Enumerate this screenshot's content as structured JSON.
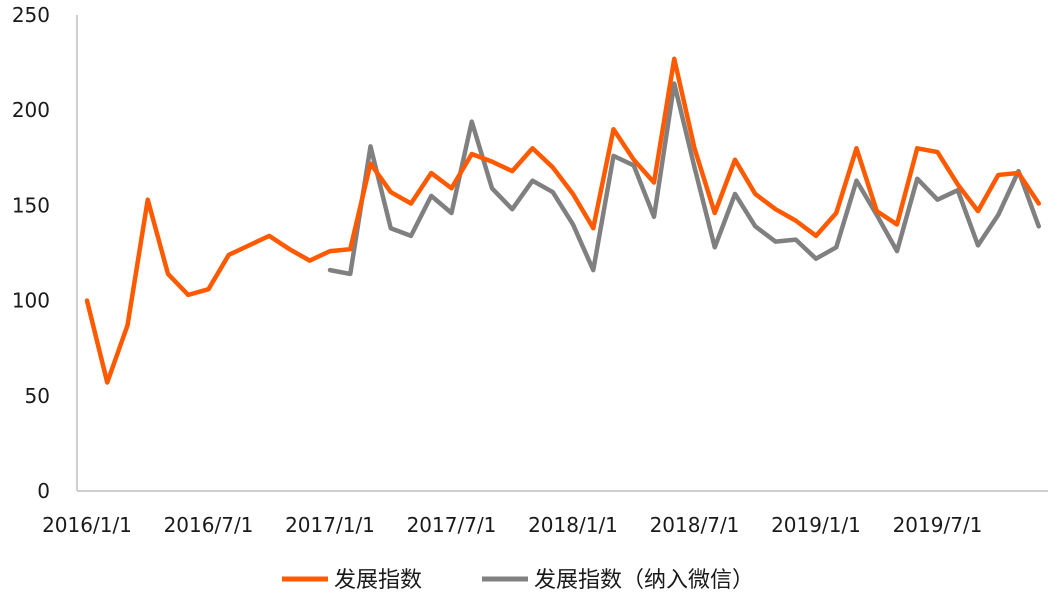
{
  "chart_data": {
    "type": "line",
    "title": "",
    "xlabel": "",
    "ylabel": "",
    "ylim": [
      0,
      250
    ],
    "yticks": [
      "0",
      "50",
      "100",
      "150",
      "200",
      "250"
    ],
    "xtick_labels": [
      "2016/1/1",
      "2016/7/1",
      "2017/1/1",
      "2017/7/1",
      "2018/1/1",
      "2018/7/1",
      "2019/1/1",
      "2019/7/1"
    ],
    "x": [
      "2016/1",
      "2016/2",
      "2016/3",
      "2016/4",
      "2016/5",
      "2016/6",
      "2016/7",
      "2016/8",
      "2016/9",
      "2016/10",
      "2016/11",
      "2016/12",
      "2017/1",
      "2017/2",
      "2017/3",
      "2017/4",
      "2017/5",
      "2017/6",
      "2017/7",
      "2017/8",
      "2017/9",
      "2017/10",
      "2017/11",
      "2017/12",
      "2018/1",
      "2018/2",
      "2018/3",
      "2018/4",
      "2018/5",
      "2018/6",
      "2018/7",
      "2018/8",
      "2018/9",
      "2018/10",
      "2018/11",
      "2018/12",
      "2019/1",
      "2019/2",
      "2019/3",
      "2019/4",
      "2019/5",
      "2019/6",
      "2019/7",
      "2019/8",
      "2019/9",
      "2019/10",
      "2019/11",
      "2019/12"
    ],
    "grid": false,
    "legend_position": "bottom",
    "series": [
      {
        "name": "发展指数",
        "color": "#ff5a00",
        "values": [
          100,
          57,
          87,
          153,
          114,
          103,
          106,
          124,
          129,
          134,
          127,
          121,
          126,
          127,
          172,
          157,
          151,
          167,
          159,
          177,
          173,
          168,
          180,
          170,
          156,
          138,
          190,
          174,
          162,
          227,
          180,
          146,
          174,
          156,
          148,
          142,
          134,
          146,
          180,
          147,
          140,
          180,
          178,
          161,
          147,
          166,
          167,
          151
        ]
      },
      {
        "name": "发展指数（纳入微信）",
        "color": "#808080",
        "values": [
          null,
          null,
          null,
          null,
          null,
          null,
          null,
          null,
          null,
          null,
          null,
          null,
          116,
          114,
          181,
          138,
          134,
          155,
          146,
          194,
          159,
          148,
          163,
          157,
          140,
          116,
          176,
          171,
          144,
          214,
          170,
          128,
          156,
          139,
          131,
          132,
          122,
          128,
          163,
          145,
          126,
          164,
          153,
          158,
          129,
          145,
          168,
          139
        ]
      }
    ]
  }
}
